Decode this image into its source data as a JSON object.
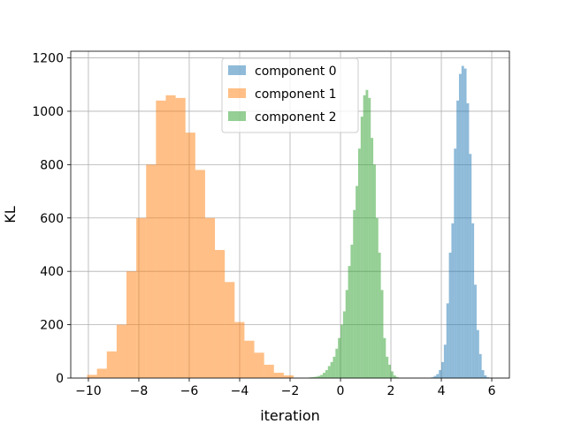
{
  "chart_data": {
    "type": "bar",
    "title": "",
    "xlabel": "iteration",
    "ylabel": "KL",
    "xlim": [
      -10.7,
      6.7
    ],
    "ylim": [
      0,
      1225
    ],
    "xticks": [
      -10,
      -8,
      -6,
      -4,
      -2,
      0,
      2,
      4,
      6
    ],
    "xtick_labels": [
      "−10",
      "−8",
      "−6",
      "−4",
      "−2",
      "0",
      "2",
      "4",
      "6"
    ],
    "yticks": [
      0,
      200,
      400,
      600,
      800,
      1000,
      1200
    ],
    "ytick_labels": [
      "0",
      "200",
      "400",
      "600",
      "800",
      "1000",
      "1200"
    ],
    "grid": true,
    "legend_position": "top-center",
    "series": [
      {
        "name": "component 0",
        "color": "#1f77b4",
        "bin_edges": [
          3.6,
          3.7,
          3.8,
          3.9,
          4.0,
          4.1,
          4.2,
          4.3,
          4.4,
          4.5,
          4.6,
          4.7,
          4.8,
          4.9,
          5.0,
          5.1,
          5.2,
          5.3,
          5.4,
          5.5,
          5.6,
          5.7,
          5.8,
          5.9
        ],
        "counts": [
          3,
          8,
          15,
          30,
          60,
          125,
          280,
          470,
          580,
          860,
          1040,
          1140,
          1170,
          1160,
          1030,
          840,
          580,
          350,
          180,
          90,
          30,
          10,
          3
        ]
      },
      {
        "name": "component 1",
        "color": "#ff7f0e",
        "bin_edges": [
          -10.05,
          -9.66,
          -9.27,
          -8.88,
          -8.49,
          -8.1,
          -7.71,
          -7.32,
          -6.93,
          -6.54,
          -6.15,
          -5.76,
          -5.37,
          -4.98,
          -4.59,
          -4.2,
          -3.81,
          -3.42,
          -3.03,
          -2.64,
          -2.25,
          -1.86
        ],
        "counts": [
          12,
          35,
          100,
          200,
          400,
          600,
          800,
          1040,
          1060,
          1050,
          920,
          780,
          600,
          480,
          360,
          210,
          140,
          95,
          50,
          20,
          10
        ]
      },
      {
        "name": "component 2",
        "color": "#2ca02c",
        "bin_edges": [
          -1.3,
          -1.2,
          -1.1,
          -1.0,
          -0.9,
          -0.8,
          -0.7,
          -0.6,
          -0.5,
          -0.4,
          -0.3,
          -0.2,
          -0.1,
          0.0,
          0.1,
          0.2,
          0.3,
          0.4,
          0.5,
          0.6,
          0.7,
          0.8,
          0.9,
          1.0,
          1.1,
          1.2,
          1.3,
          1.4,
          1.5,
          1.6,
          1.7,
          1.8,
          1.9,
          2.0,
          2.1,
          2.2,
          2.3
        ],
        "counts": [
          2,
          3,
          4,
          5,
          8,
          12,
          20,
          30,
          45,
          60,
          80,
          110,
          150,
          200,
          250,
          330,
          420,
          500,
          630,
          720,
          860,
          980,
          1060,
          1080,
          1050,
          900,
          800,
          600,
          470,
          330,
          150,
          80,
          50,
          25,
          10,
          4
        ]
      }
    ]
  }
}
